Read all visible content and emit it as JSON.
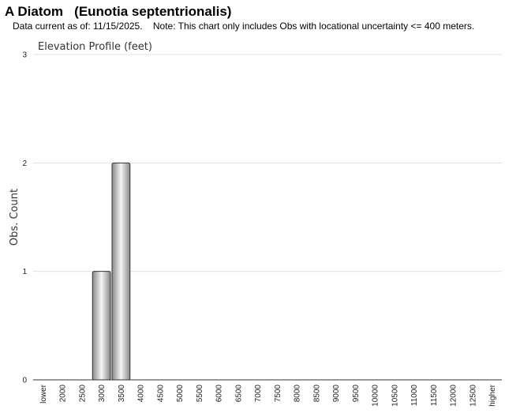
{
  "header": {
    "title": "A Diatom   (Eunotia septentrionalis)",
    "subtitle": "Data current as of: 11/15/2025.    Note: This chart only includes Obs with locational uncertainty <= 400 meters."
  },
  "chart_data": {
    "type": "bar",
    "title": "Elevation Profile (feet)",
    "y_label": "Obs. Count",
    "categories": [
      "lower",
      "2000",
      "2500",
      "3000",
      "3500",
      "4000",
      "4500",
      "5000",
      "5500",
      "6000",
      "6500",
      "7000",
      "7500",
      "8000",
      "8500",
      "9000",
      "9500",
      "10000",
      "10500",
      "11000",
      "11500",
      "12000",
      "12500",
      "higher"
    ],
    "values": [
      0,
      0,
      0,
      1,
      2,
      0,
      0,
      0,
      0,
      0,
      0,
      0,
      0,
      0,
      0,
      0,
      0,
      0,
      0,
      0,
      0,
      0,
      0,
      0
    ],
    "color": "#a0a0a0",
    "ylim": [
      0,
      3
    ],
    "yticks": [
      0,
      1,
      2,
      3
    ],
    "grid": true
  }
}
